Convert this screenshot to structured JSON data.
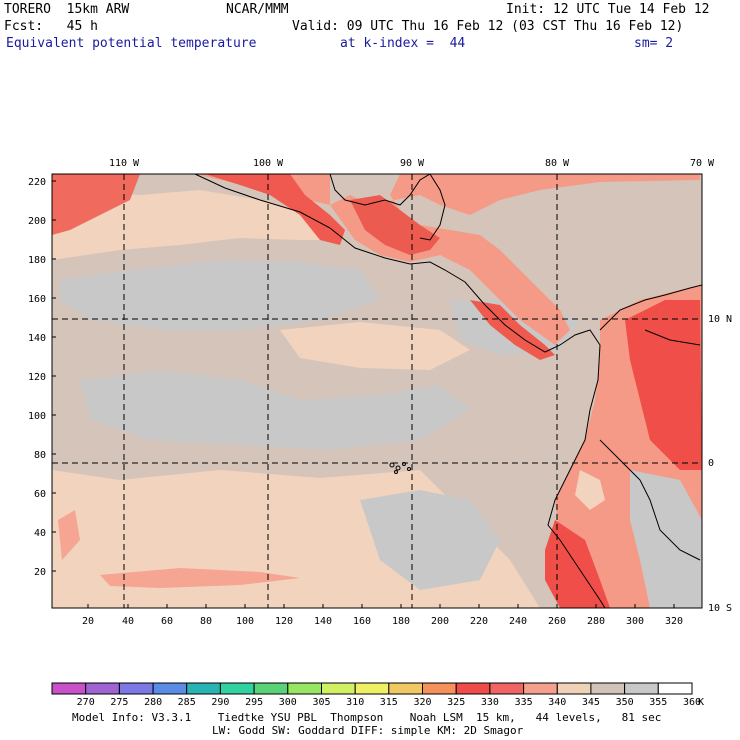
{
  "header": {
    "model": "TORERO  15km ARW",
    "org": "NCAR/MMM",
    "init": "Init: 12 UTC Tue 14 Feb 12",
    "fcst": "Fcst:   45 h",
    "valid": "Valid: 09 UTC Thu 16 Feb 12 (03 CST Thu 16 Feb 12)",
    "field": "Equivalent potential temperature",
    "level": "at k-index =  44",
    "smooth": "sm= 2"
  },
  "axes": {
    "top_lon": [
      "110 W",
      "100 W",
      "90 W",
      "80 W",
      "70 W"
    ],
    "right_lat": [
      "10 N",
      "0",
      "10 S"
    ],
    "left_y": [
      "220",
      "200",
      "180",
      "160",
      "140",
      "120",
      "100",
      "80",
      "60",
      "40",
      "20"
    ],
    "bottom_x": [
      "20",
      "40",
      "60",
      "80",
      "100",
      "120",
      "140",
      "160",
      "180",
      "200",
      "220",
      "240",
      "260",
      "280",
      "300",
      "320"
    ]
  },
  "colorbar": {
    "labels": [
      "270",
      "275",
      "280",
      "285",
      "290",
      "295",
      "300",
      "305",
      "310",
      "315",
      "320",
      "325",
      "330",
      "335",
      "340",
      "345",
      "350",
      "355",
      "360"
    ],
    "unit": "K",
    "colors": [
      "#c850c8",
      "#a064d2",
      "#7c78e6",
      "#5a8ce6",
      "#28b4b4",
      "#32d2a0",
      "#5ad278",
      "#96e664",
      "#d2f064",
      "#f0f064",
      "#f0c864",
      "#f5915a",
      "#f04b4b",
      "#f06464",
      "#f5a08c",
      "#f0d2b9",
      "#d2c3b9",
      "#c8c8c8",
      "#ffffff"
    ]
  },
  "footer": {
    "line1": "Model Info: V3.3.1    Tiedtke YSU PBL  Thompson    Noah LSM  15 km,   44 levels,   81 sec",
    "line2": "LW: Godd SW: Goddard DIFF: simple KM: 2D Smagor"
  }
}
